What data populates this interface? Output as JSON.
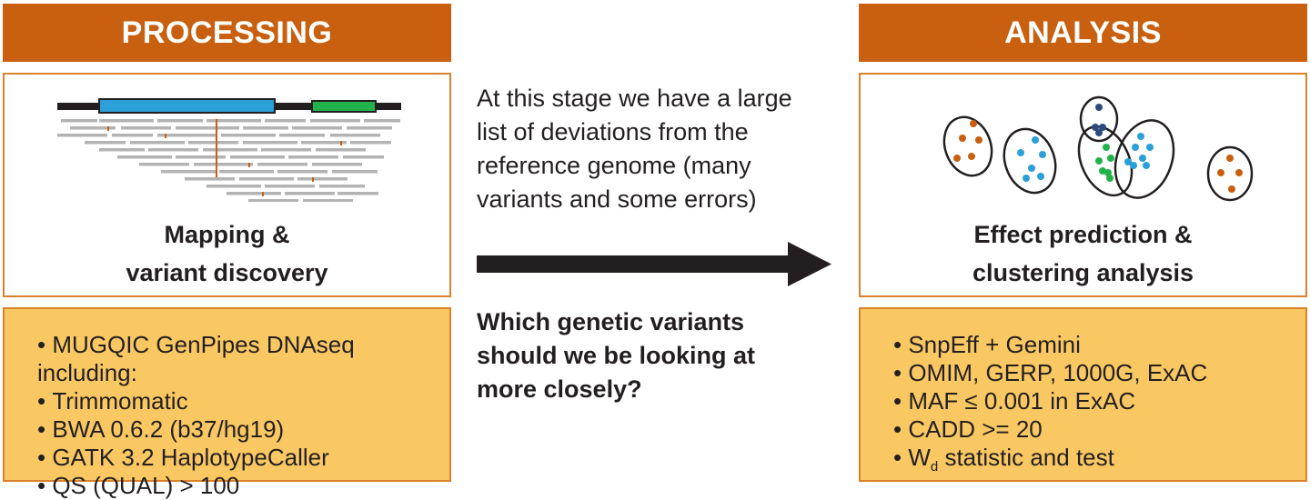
{
  "processing": {
    "header": "PROCESSING",
    "caption_line1": "Mapping &",
    "caption_line2": "variant discovery",
    "bullets": [
      "MUGQIC GenPipes DNAseq including:",
      "Trimmomatic",
      "BWA 0.6.2 (b37/hg19)",
      "GATK 3.2 HaplotypeCaller",
      "QS (QUAL) > 100"
    ]
  },
  "middle": {
    "description": [
      "At this stage we have a large",
      "list of deviations from the",
      "reference genome (many",
      "variants and some errors)"
    ],
    "question": [
      "Which genetic variants",
      "should we be looking at",
      "more closely?"
    ]
  },
  "analysis": {
    "header": "ANALYSIS",
    "caption_line1": "Effect prediction &",
    "caption_line2": "clustering analysis",
    "bullets": [
      "SnpEff + Gemini",
      "OMIM, GERP, 1000G, ExAC",
      "MAF ≤ 0.001 in ExAC",
      "CADD >= 20"
    ],
    "last_bullet": {
      "main": "W",
      "subscript": "d",
      "rest": " statistic and test"
    }
  },
  "colors": {
    "header_bg": "#c8600f",
    "box_border": "#d9822b",
    "yellow_fill": "#fac862",
    "read_gray": "#b3b3b3",
    "variant_orange": "#c8600f",
    "exon_blue": "#2a9fd8",
    "exon_green": "#22b24c",
    "cluster_orange": "#c8600f",
    "cluster_blue": "#2a9fd8",
    "cluster_green": "#22b24c",
    "cluster_navy": "#2c4a7a"
  },
  "icons": [
    "read-alignment-graphic",
    "cluster-scatter-graphic",
    "right-arrow-icon"
  ]
}
